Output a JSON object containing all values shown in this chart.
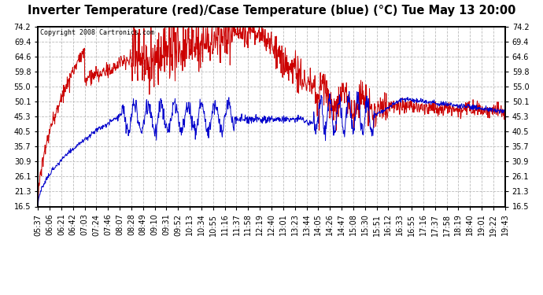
{
  "title": "Inverter Temperature (red)/Case Temperature (blue) (°C) Tue May 13 20:00",
  "copyright": "Copyright 2008 Cartronics.com",
  "y_ticks": [
    16.5,
    21.3,
    26.1,
    30.9,
    35.7,
    40.5,
    45.3,
    50.1,
    55.0,
    59.8,
    64.6,
    69.4,
    74.2
  ],
  "ylim": [
    16.5,
    74.2
  ],
  "x_labels": [
    "05:37",
    "06:06",
    "06:21",
    "06:42",
    "07:03",
    "07:24",
    "07:46",
    "08:07",
    "08:28",
    "08:49",
    "09:10",
    "09:31",
    "09:52",
    "10:13",
    "10:34",
    "10:55",
    "11:16",
    "11:37",
    "11:58",
    "12:19",
    "12:40",
    "13:01",
    "13:23",
    "13:44",
    "14:05",
    "14:26",
    "14:47",
    "15:08",
    "15:30",
    "15:51",
    "16:12",
    "16:33",
    "16:55",
    "17:16",
    "17:37",
    "17:58",
    "18:19",
    "18:40",
    "19:01",
    "19:22",
    "19:43"
  ],
  "bg_color": "#ffffff",
  "plot_bg_color": "#ffffff",
  "grid_color": "#bbbbbb",
  "red_color": "#cc0000",
  "blue_color": "#0000cc",
  "title_fontsize": 10.5,
  "tick_fontsize": 7.0
}
